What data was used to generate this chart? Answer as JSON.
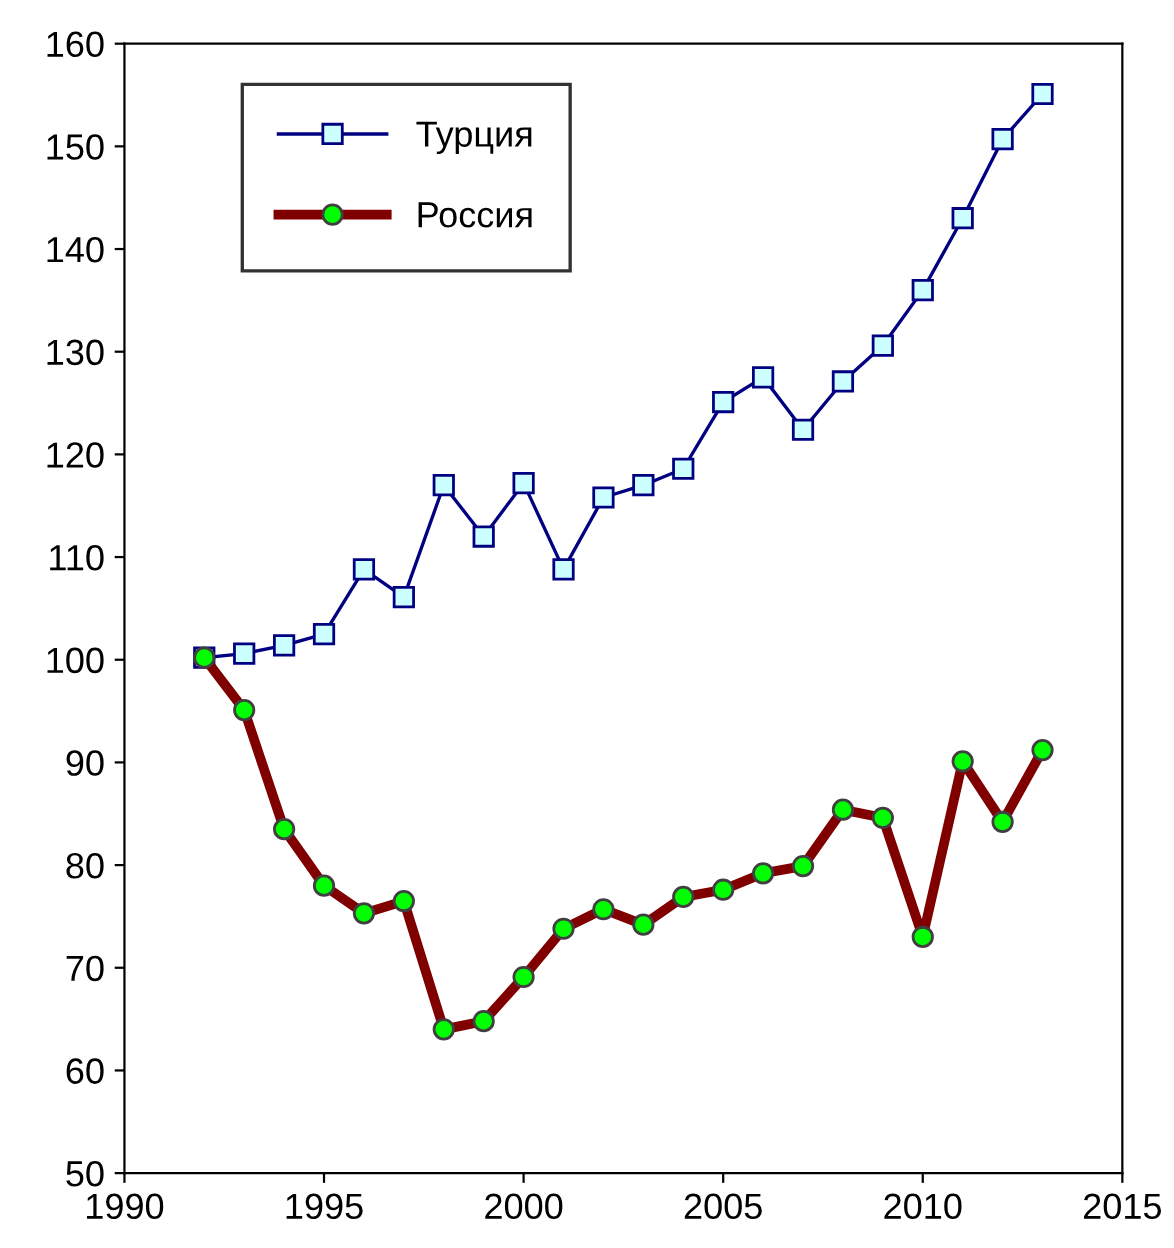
{
  "chart_data": {
    "type": "line",
    "x": [
      1992,
      1993,
      1994,
      1995,
      1996,
      1997,
      1998,
      1999,
      2000,
      2001,
      2002,
      2003,
      2004,
      2005,
      2006,
      2007,
      2008,
      2009,
      2010,
      2011,
      2012,
      2013
    ],
    "series": [
      {
        "name": "Турция",
        "color": "#000080",
        "marker": "square",
        "values": [
          100.2,
          100.6,
          101.4,
          102.5,
          108.8,
          106.1,
          117,
          112,
          117.2,
          108.8,
          115.8,
          117,
          118.6,
          125.1,
          127.5,
          122.4,
          127.1,
          130.6,
          136,
          143,
          150.7,
          155.1
        ]
      },
      {
        "name": "Россия",
        "color": "#800000",
        "marker": "circle",
        "values": [
          100.2,
          95.1,
          83.5,
          78,
          75.3,
          76.5,
          64,
          64.8,
          69.1,
          73.8,
          75.7,
          74.2,
          76.9,
          77.6,
          79.2,
          79.9,
          85.4,
          84.6,
          73,
          90.1,
          84.2,
          91.2
        ]
      }
    ],
    "xlim": [
      1990,
      2015
    ],
    "xticks": [
      1990,
      1995,
      2000,
      2005,
      2010,
      2015
    ],
    "ylim": [
      50,
      160
    ],
    "yticks": [
      50,
      60,
      70,
      80,
      90,
      100,
      110,
      120,
      130,
      140,
      150,
      160
    ],
    "grid": false,
    "legend": "top left",
    "line_style": "solid"
  }
}
